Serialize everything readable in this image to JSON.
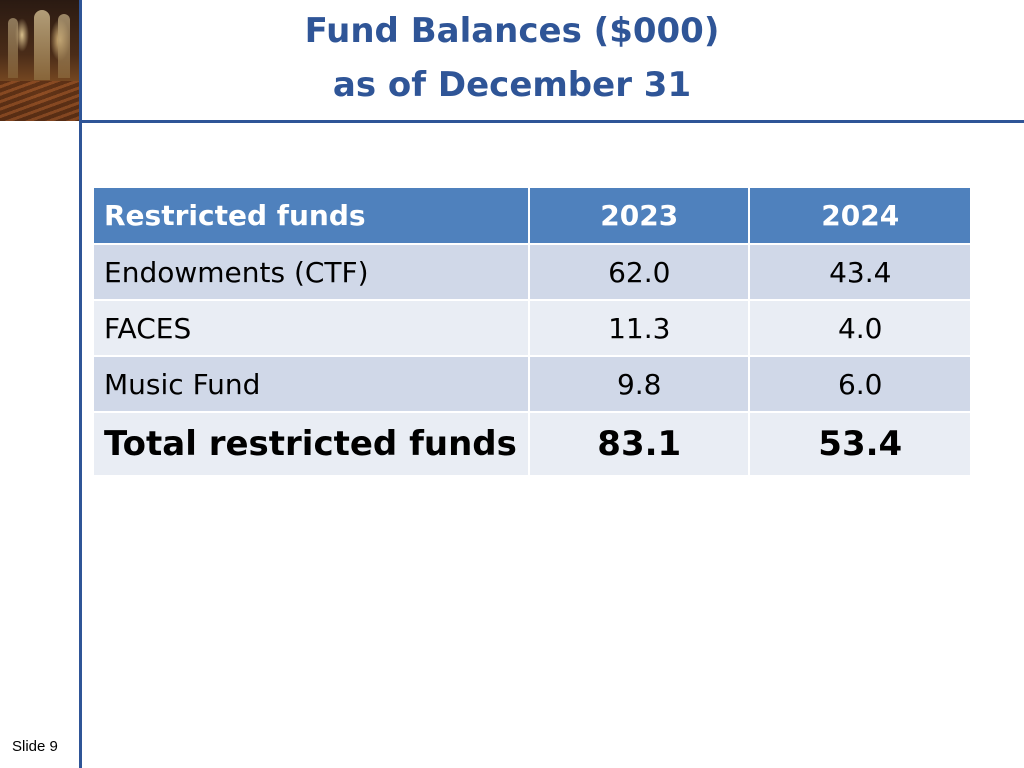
{
  "slide": {
    "title_line1": "Fund Balances ($000)",
    "title_line2": "as of December 31",
    "slide_number": "Slide 9"
  },
  "colors": {
    "accent": "#2f5597",
    "header_fill": "#4f81bd",
    "row_fill_dark": "#d0d8e8",
    "row_fill_light": "#e9edf4"
  },
  "table": {
    "headers": [
      "Restricted funds",
      "2023",
      "2024"
    ],
    "rows": [
      [
        "Endowments (CTF)",
        "62.0",
        "43.4"
      ],
      [
        "FACES",
        "11.3",
        "4.0"
      ],
      [
        "Music Fund",
        "9.8",
        "6.0"
      ]
    ],
    "total": [
      "Total restricted funds",
      "83.1",
      "53.4"
    ]
  }
}
